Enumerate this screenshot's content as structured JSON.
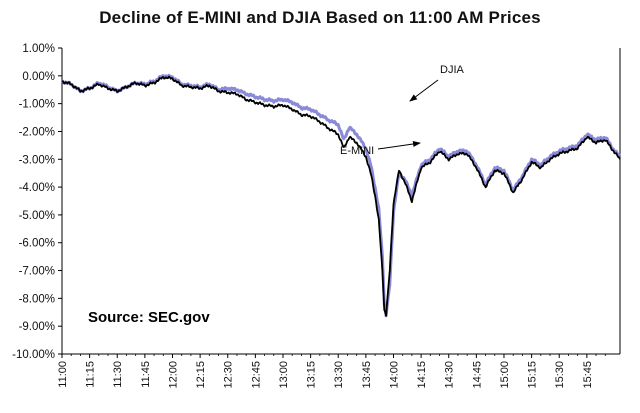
{
  "chart_data": {
    "type": "line",
    "title": "Decline of E-MINI and DJIA Based on 11:00 AM Prices",
    "xlabel": "",
    "ylabel": "",
    "x_ticks": [
      "11:00",
      "11:15",
      "11:30",
      "11:45",
      "12:00",
      "12:15",
      "12:30",
      "12:45",
      "13:00",
      "13:15",
      "13:30",
      "13:45",
      "14:00",
      "14:15",
      "14:30",
      "14:45",
      "15:00",
      "15:15",
      "15:30",
      "15:45"
    ],
    "y_ticks": [
      1,
      0,
      -1,
      -2,
      -3,
      -4,
      -5,
      -6,
      -7,
      -8,
      -9,
      -10
    ],
    "y_tick_labels": [
      "1.00%",
      "0.00%",
      "-1.00%",
      "-2.00%",
      "-3.00%",
      "-4.00%",
      "-5.00%",
      "-6.00%",
      "-7.00%",
      "-8.00%",
      "-9.00%",
      "-10.00%"
    ],
    "ylim": [
      -10,
      1
    ],
    "x_range_minutes": [
      0,
      303
    ],
    "series": [
      {
        "name": "DJIA",
        "color": "#8a8ad8",
        "points": [
          [
            0,
            -0.2
          ],
          [
            5,
            -0.3
          ],
          [
            10,
            -0.55
          ],
          [
            15,
            -0.45
          ],
          [
            20,
            -0.25
          ],
          [
            25,
            -0.4
          ],
          [
            30,
            -0.55
          ],
          [
            35,
            -0.4
          ],
          [
            40,
            -0.25
          ],
          [
            45,
            -0.3
          ],
          [
            50,
            -0.2
          ],
          [
            55,
            0.0
          ],
          [
            60,
            -0.05
          ],
          [
            65,
            -0.3
          ],
          [
            70,
            -0.35
          ],
          [
            75,
            -0.4
          ],
          [
            80,
            -0.3
          ],
          [
            85,
            -0.5
          ],
          [
            90,
            -0.45
          ],
          [
            95,
            -0.5
          ],
          [
            100,
            -0.65
          ],
          [
            105,
            -0.75
          ],
          [
            110,
            -0.85
          ],
          [
            115,
            -0.9
          ],
          [
            120,
            -0.85
          ],
          [
            125,
            -0.95
          ],
          [
            130,
            -1.15
          ],
          [
            135,
            -1.2
          ],
          [
            140,
            -1.4
          ],
          [
            145,
            -1.6
          ],
          [
            150,
            -1.75
          ],
          [
            153,
            -2.3
          ],
          [
            156,
            -1.85
          ],
          [
            160,
            -2.1
          ],
          [
            165,
            -2.6
          ],
          [
            168,
            -3.3
          ],
          [
            170,
            -4.0
          ],
          [
            172,
            -4.8
          ],
          [
            174,
            -6.5
          ],
          [
            175,
            -8.2
          ],
          [
            176,
            -8.6
          ],
          [
            178,
            -7.5
          ],
          [
            180,
            -4.9
          ],
          [
            183,
            -3.5
          ],
          [
            186,
            -3.7
          ],
          [
            190,
            -4.3
          ],
          [
            195,
            -3.2
          ],
          [
            200,
            -3.0
          ],
          [
            205,
            -2.6
          ],
          [
            210,
            -2.9
          ],
          [
            215,
            -2.7
          ],
          [
            220,
            -2.7
          ],
          [
            225,
            -3.2
          ],
          [
            230,
            -3.9
          ],
          [
            235,
            -3.3
          ],
          [
            240,
            -3.4
          ],
          [
            245,
            -4.1
          ],
          [
            250,
            -3.6
          ],
          [
            255,
            -3.0
          ],
          [
            260,
            -3.2
          ],
          [
            265,
            -2.9
          ],
          [
            270,
            -2.7
          ],
          [
            275,
            -2.6
          ],
          [
            280,
            -2.5
          ],
          [
            285,
            -2.1
          ],
          [
            290,
            -2.3
          ],
          [
            295,
            -2.2
          ],
          [
            300,
            -2.7
          ],
          [
            303,
            -2.9
          ]
        ]
      },
      {
        "name": "E-MINI",
        "color": "#000000",
        "points": [
          [
            0,
            -0.2
          ],
          [
            5,
            -0.3
          ],
          [
            10,
            -0.55
          ],
          [
            15,
            -0.45
          ],
          [
            20,
            -0.3
          ],
          [
            25,
            -0.45
          ],
          [
            30,
            -0.55
          ],
          [
            35,
            -0.4
          ],
          [
            40,
            -0.25
          ],
          [
            45,
            -0.35
          ],
          [
            50,
            -0.25
          ],
          [
            55,
            -0.05
          ],
          [
            60,
            -0.1
          ],
          [
            65,
            -0.35
          ],
          [
            70,
            -0.4
          ],
          [
            75,
            -0.45
          ],
          [
            80,
            -0.35
          ],
          [
            85,
            -0.55
          ],
          [
            90,
            -0.6
          ],
          [
            95,
            -0.65
          ],
          [
            100,
            -0.85
          ],
          [
            105,
            -0.95
          ],
          [
            110,
            -1.05
          ],
          [
            115,
            -1.1
          ],
          [
            120,
            -1.05
          ],
          [
            125,
            -1.2
          ],
          [
            130,
            -1.4
          ],
          [
            135,
            -1.45
          ],
          [
            140,
            -1.65
          ],
          [
            145,
            -1.9
          ],
          [
            150,
            -2.1
          ],
          [
            153,
            -2.6
          ],
          [
            156,
            -2.2
          ],
          [
            160,
            -2.4
          ],
          [
            165,
            -2.9
          ],
          [
            168,
            -3.6
          ],
          [
            170,
            -4.3
          ],
          [
            172,
            -5.2
          ],
          [
            174,
            -7.0
          ],
          [
            175,
            -8.4
          ],
          [
            176,
            -8.6
          ],
          [
            178,
            -7.0
          ],
          [
            180,
            -4.6
          ],
          [
            183,
            -3.4
          ],
          [
            186,
            -3.8
          ],
          [
            190,
            -4.5
          ],
          [
            195,
            -3.3
          ],
          [
            200,
            -3.1
          ],
          [
            205,
            -2.7
          ],
          [
            210,
            -3.0
          ],
          [
            215,
            -2.8
          ],
          [
            220,
            -2.8
          ],
          [
            225,
            -3.3
          ],
          [
            230,
            -4.0
          ],
          [
            235,
            -3.4
          ],
          [
            240,
            -3.5
          ],
          [
            245,
            -4.2
          ],
          [
            250,
            -3.7
          ],
          [
            255,
            -3.1
          ],
          [
            260,
            -3.3
          ],
          [
            265,
            -3.0
          ],
          [
            270,
            -2.8
          ],
          [
            275,
            -2.7
          ],
          [
            280,
            -2.6
          ],
          [
            285,
            -2.2
          ],
          [
            290,
            -2.4
          ],
          [
            295,
            -2.3
          ],
          [
            300,
            -2.75
          ],
          [
            303,
            -3.0
          ]
        ]
      }
    ],
    "annotations": [
      {
        "text": "DJIA",
        "points_to": "DJIA"
      },
      {
        "text": "E-MINI",
        "points_to": "E-MINI"
      }
    ],
    "source_label": "Source: SEC.gov",
    "grid": false
  }
}
